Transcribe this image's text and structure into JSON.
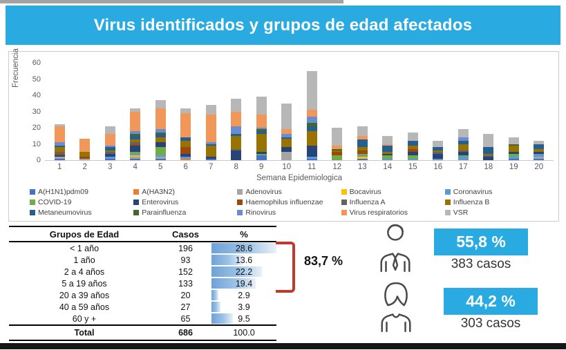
{
  "title": "Virus identificados y grupos de edad afectados",
  "chart_data": {
    "type": "bar",
    "stacked": true,
    "title": "",
    "xlabel": "Semana Epidemiologica",
    "ylabel": "Frecuencia",
    "ylim": [
      0,
      60
    ],
    "yticks": [
      0,
      10,
      20,
      30,
      40,
      50,
      60
    ],
    "grid": false,
    "legend_position": "bottom",
    "categories": [
      "1",
      "2",
      "3",
      "4",
      "5",
      "6",
      "7",
      "8",
      "9",
      "10",
      "11",
      "12",
      "13",
      "14",
      "15",
      "16",
      "17",
      "18",
      "19",
      "20"
    ],
    "totals": [
      22,
      13,
      21,
      32,
      37,
      32,
      34,
      38,
      39,
      35,
      55,
      20,
      21,
      15,
      17,
      12,
      19,
      16,
      14,
      12
    ],
    "series": [
      {
        "name": "A(H1N1)pdm09",
        "color": "#4472C4",
        "values": [
          1,
          0,
          1,
          1,
          1,
          0,
          1,
          0,
          3,
          0,
          1,
          0,
          1,
          0,
          0,
          0,
          0,
          0,
          1,
          1
        ]
      },
      {
        "name": "A(HA3N2)",
        "color": "#ED7D31",
        "values": [
          0,
          0,
          0,
          0,
          0,
          1,
          0,
          0,
          0,
          0,
          0,
          0,
          0,
          0,
          0,
          0,
          0,
          0,
          0,
          0
        ]
      },
      {
        "name": "Adenovirus",
        "color": "#A5A5A5",
        "values": [
          1,
          1,
          0,
          1,
          1,
          0,
          0,
          0,
          0,
          5,
          0,
          0,
          0,
          0,
          0,
          0,
          0,
          0,
          0,
          1
        ]
      },
      {
        "name": "Bocavirus",
        "color": "#FFC000",
        "values": [
          0,
          0,
          0,
          1,
          0,
          0,
          0,
          0,
          0,
          0,
          0,
          0,
          1,
          0,
          0,
          0,
          0,
          0,
          0,
          0
        ]
      },
      {
        "name": "Coronavirus",
        "color": "#5B9BD5",
        "values": [
          0,
          0,
          1,
          1,
          1,
          1,
          0,
          0,
          0,
          0,
          1,
          0,
          1,
          1,
          1,
          1,
          2,
          0,
          1,
          2
        ]
      },
      {
        "name": "COVID-19",
        "color": "#70AD47",
        "values": [
          0,
          0,
          0,
          1,
          5,
          0,
          0,
          0,
          1,
          0,
          0,
          3,
          1,
          2,
          2,
          0,
          1,
          0,
          2,
          0
        ]
      },
      {
        "name": "Enterovirus",
        "color": "#264478",
        "values": [
          1,
          0,
          2,
          4,
          3,
          2,
          1,
          6,
          1,
          3,
          7,
          0,
          0,
          1,
          2,
          3,
          2,
          2,
          1,
          1
        ]
      },
      {
        "name": "Haemophilus influenzae",
        "color": "#9E480E",
        "values": [
          1,
          1,
          0,
          1,
          0,
          4,
          0,
          0,
          0,
          0,
          0,
          2,
          2,
          0,
          2,
          0,
          0,
          0,
          0,
          0
        ]
      },
      {
        "name": "Influenza A",
        "color": "#636363",
        "values": [
          1,
          0,
          1,
          1,
          0,
          0,
          0,
          1,
          0,
          0,
          0,
          0,
          0,
          0,
          0,
          1,
          1,
          1,
          0,
          0
        ]
      },
      {
        "name": "Influenza B",
        "color": "#997300",
        "values": [
          3,
          3,
          1,
          2,
          3,
          4,
          7,
          8,
          11,
          5,
          9,
          1,
          2,
          1,
          2,
          1,
          4,
          1,
          4,
          2
        ]
      },
      {
        "name": "Metaneumovirus",
        "color": "#255E91",
        "values": [
          1,
          0,
          2,
          2,
          2,
          2,
          1,
          1,
          2,
          1,
          3,
          0,
          5,
          4,
          3,
          2,
          2,
          4,
          0,
          3
        ]
      },
      {
        "name": "Parainfluenza",
        "color": "#43682B",
        "values": [
          0,
          0,
          0,
          1,
          1,
          0,
          0,
          0,
          1,
          0,
          2,
          1,
          0,
          0,
          0,
          0,
          0,
          0,
          1,
          0
        ]
      },
      {
        "name": "Rinovirus",
        "color": "#698ED0",
        "values": [
          2,
          0,
          1,
          2,
          2,
          0,
          1,
          5,
          1,
          2,
          4,
          0,
          0,
          0,
          0,
          0,
          2,
          0,
          0,
          0
        ]
      },
      {
        "name": "Virus respiratorios",
        "color": "#F1975A",
        "values": [
          10,
          8,
          7,
          12,
          13,
          15,
          17,
          9,
          8,
          3,
          4,
          2,
          2,
          1,
          0,
          0,
          0,
          0,
          0,
          0
        ]
      },
      {
        "name": "VSR",
        "color": "#B7B7B7",
        "values": [
          1,
          0,
          5,
          2,
          5,
          3,
          6,
          8,
          11,
          16,
          24,
          11,
          6,
          5,
          5,
          4,
          5,
          8,
          4,
          2
        ]
      }
    ]
  },
  "table": {
    "headers": [
      "Grupos de Edad",
      "Casos",
      "%"
    ],
    "rows": [
      {
        "group": "< 1 año",
        "cases": "196",
        "pct": 28.6
      },
      {
        "group": "1 año",
        "cases": "93",
        "pct": 13.6
      },
      {
        "group": "2 a 4 años",
        "cases": "152",
        "pct": 22.2
      },
      {
        "group": "5 a 19 años",
        "cases": "133",
        "pct": 19.4
      },
      {
        "group": "20 a 39 años",
        "cases": "20",
        "pct": 2.9
      },
      {
        "group": "40 a 59 años",
        "cases": "27",
        "pct": 3.9
      },
      {
        "group": "60 y +",
        "cases": "65",
        "pct": 9.5
      }
    ],
    "total_row": {
      "group": "Total",
      "cases": "686",
      "pct": "100.0"
    },
    "databar_max": 28.6
  },
  "annotations": {
    "bracket_label": "83,7  %"
  },
  "demographics": {
    "male": {
      "percent": "55,8 %",
      "cases": "383 casos"
    },
    "female": {
      "percent": "44,2 %",
      "cases": "303 casos"
    }
  },
  "colors": {
    "banner": "#29ABE2",
    "highlight_box": "#29ABE2",
    "bracket": "#C0392B",
    "databar": "#6FA2D8"
  }
}
